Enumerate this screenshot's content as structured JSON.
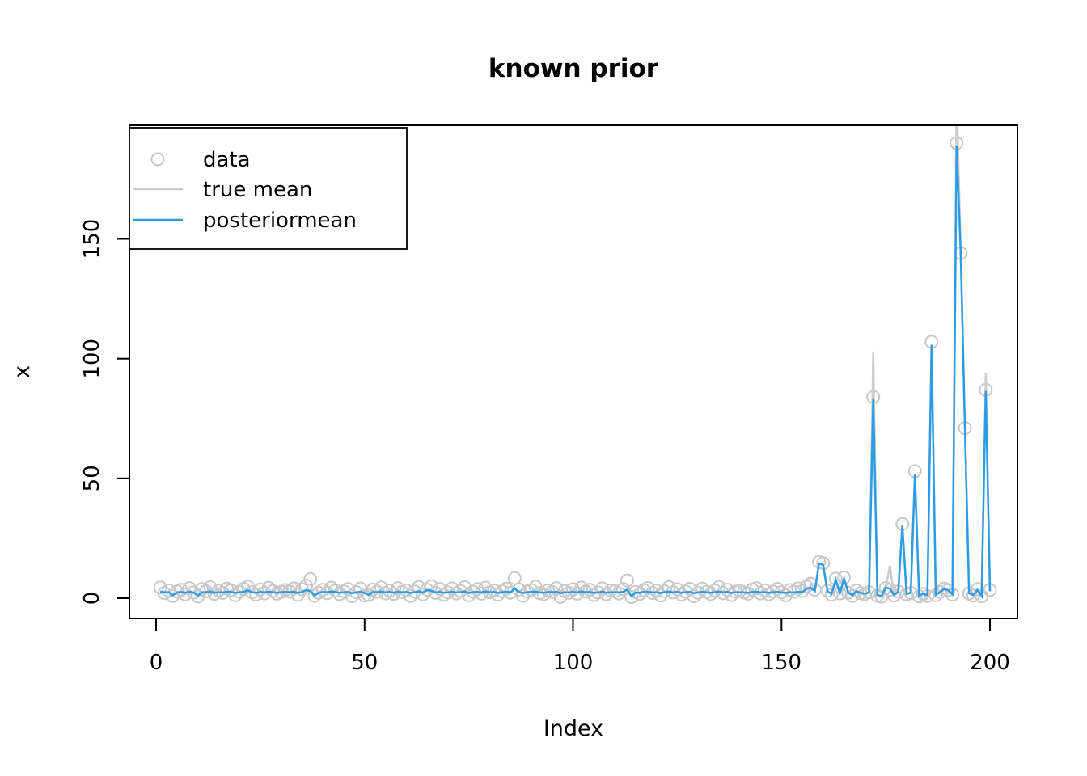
{
  "window": {
    "background": "#ffffff"
  },
  "chart_data": {
    "type": "line",
    "title": "known prior",
    "xlabel": "Index",
    "ylabel": "x",
    "xticks": [
      0,
      50,
      100,
      150,
      200
    ],
    "yticks": [
      0,
      50,
      100,
      150
    ],
    "xlim": [
      -6.4,
      206.6
    ],
    "ylim": [
      -8.4,
      197.4
    ],
    "n_points": 200,
    "grid": false,
    "frame_color": "#000000",
    "legend": {
      "position": "topleft",
      "items": [
        {
          "label": "data",
          "type": "point",
          "color": "#C8C8C8"
        },
        {
          "label": "true mean",
          "type": "line",
          "color": "#CDCDCD"
        },
        {
          "label": "posteriormean",
          "type": "line",
          "color": "#2D9CE7"
        }
      ]
    },
    "series": [
      {
        "name": "data",
        "type": "scatter",
        "marker": "open-circle",
        "color": "#C8C8C8",
        "values": [
          4.5,
          2.1,
          3.2,
          0.9,
          2.8,
          3.5,
          1.6,
          4.2,
          2.4,
          0.7,
          3.8,
          2.9,
          4.6,
          1.8,
          3.1,
          2.2,
          4.0,
          3.3,
          1.2,
          2.7,
          3.9,
          4.8,
          2.5,
          1.5,
          3.6,
          2.0,
          4.3,
          3.0,
          1.9,
          2.6,
          3.4,
          2.8,
          4.1,
          1.4,
          3.7,
          5.2,
          8.0,
          1.0,
          2.3,
          3.5,
          2.1,
          4.4,
          3.2,
          1.7,
          2.9,
          3.8,
          0.8,
          2.5,
          4.0,
          1.1,
          1.3,
          3.6,
          2.7,
          4.5,
          2.0,
          3.1,
          1.8,
          4.2,
          2.6,
          3.3,
          0.9,
          2.8,
          4.7,
          1.6,
          3.5,
          5.0,
          2.2,
          3.9,
          1.4,
          2.4,
          4.1,
          2.0,
          3.0,
          4.6,
          1.2,
          2.7,
          3.8,
          1.9,
          4.4,
          2.5,
          3.2,
          1.5,
          2.9,
          4.0,
          2.3,
          8.4,
          3.6,
          1.0,
          2.8,
          3.4,
          4.8,
          2.1,
          1.7,
          3.3,
          2.6,
          4.2,
          0.6,
          3.0,
          2.2,
          3.7,
          1.9,
          4.5,
          2.8,
          3.5,
          1.3,
          2.4,
          4.1,
          1.6,
          3.2,
          2.9,
          2.0,
          3.8,
          7.4,
          0.5,
          2.6,
          1.8,
          3.4,
          4.3,
          2.2,
          3.1,
          1.1,
          2.9,
          4.6,
          2.4,
          3.7,
          1.5,
          2.8,
          3.9,
          0.8,
          2.3,
          4.0,
          2.6,
          1.7,
          3.2,
          4.7,
          2.1,
          3.5,
          1.3,
          2.7,
          3.0,
          2.4,
          1.9,
          3.6,
          4.2,
          2.0,
          3.3,
          1.6,
          2.8,
          3.9,
          2.5,
          1.2,
          3.4,
          2.7,
          4.1,
          3.0,
          4.8,
          6.0,
          3.5,
          15.2,
          14.6,
          3.1,
          1.5,
          8.2,
          2.0,
          8.6,
          2.3,
          0.9,
          3.2,
          2.1,
          1.7,
          2.5,
          84.0,
          1.0,
          0.6,
          4.2,
          3.4,
          1.1,
          2.8,
          31.0,
          1.6,
          2.2,
          53.0,
          0.7,
          1.8,
          0.9,
          107.0,
          1.2,
          2.6,
          4.0,
          3.4,
          1.5,
          190.0,
          144.0,
          71.0,
          2.0,
          1.1,
          3.8,
          0.8,
          87.0,
          3.4
        ]
      },
      {
        "name": "posteriormean",
        "type": "line",
        "color": "#2D9CE7",
        "values": [
          2.8,
          2.4,
          2.5,
          1.2,
          2.4,
          2.6,
          2.3,
          2.7,
          2.4,
          1.0,
          2.5,
          2.5,
          2.8,
          2.3,
          2.5,
          2.4,
          2.7,
          2.6,
          2.2,
          2.5,
          2.6,
          3.3,
          2.5,
          2.2,
          2.6,
          2.4,
          2.7,
          2.5,
          2.3,
          2.5,
          2.6,
          2.5,
          2.7,
          2.2,
          2.6,
          3.4,
          3.0,
          1.1,
          2.3,
          2.6,
          2.4,
          2.8,
          2.6,
          2.3,
          2.5,
          2.6,
          2.1,
          2.4,
          2.7,
          2.2,
          1.4,
          2.6,
          2.5,
          2.8,
          2.4,
          2.6,
          2.3,
          2.7,
          2.5,
          2.6,
          2.2,
          2.5,
          2.8,
          2.3,
          3.4,
          3.1,
          2.4,
          2.6,
          2.3,
          2.4,
          2.7,
          2.4,
          2.5,
          2.8,
          2.2,
          2.5,
          2.6,
          2.4,
          2.8,
          2.5,
          2.6,
          2.3,
          2.5,
          2.7,
          2.4,
          4.1,
          2.6,
          2.2,
          2.5,
          2.6,
          2.8,
          2.4,
          2.3,
          2.6,
          2.5,
          2.7,
          2.1,
          2.5,
          2.4,
          2.6,
          2.4,
          2.8,
          2.5,
          2.6,
          2.2,
          2.4,
          2.7,
          2.3,
          2.5,
          2.5,
          2.4,
          2.6,
          3.6,
          0.8,
          2.4,
          2.3,
          2.6,
          2.7,
          2.4,
          2.5,
          2.2,
          2.5,
          2.8,
          2.4,
          2.6,
          2.3,
          2.5,
          2.6,
          2.1,
          2.4,
          2.7,
          2.5,
          2.3,
          2.5,
          2.8,
          2.4,
          2.6,
          2.2,
          2.5,
          2.5,
          2.4,
          2.3,
          2.6,
          2.7,
          2.4,
          2.5,
          2.3,
          2.5,
          2.6,
          2.4,
          2.2,
          2.5,
          2.4,
          2.6,
          2.5,
          3.9,
          4.4,
          3.0,
          14.5,
          13.8,
          2.9,
          1.8,
          7.8,
          2.1,
          8.1,
          2.4,
          1.2,
          3.0,
          2.2,
          1.9,
          2.4,
          83.5,
          1.3,
          0.9,
          4.4,
          4.0,
          1.4,
          2.6,
          30.3,
          1.8,
          2.3,
          51.8,
          1.0,
          1.9,
          1.2,
          105.8,
          1.4,
          2.5,
          3.8,
          3.3,
          1.7,
          189.0,
          143.5,
          70.5,
          2.1,
          1.3,
          3.5,
          1.0,
          86.5,
          2.9
        ]
      },
      {
        "name": "true mean",
        "type": "line",
        "color": "#CDCDCD",
        "base": "posteriormean",
        "overrides": {
          "172": 103,
          "176": 13.5,
          "192": 212,
          "199": 94
        }
      }
    ]
  }
}
